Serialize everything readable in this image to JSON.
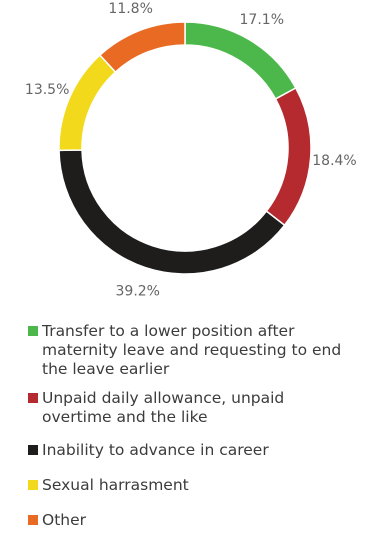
{
  "chart_data": {
    "type": "pie",
    "variant": "donut",
    "categories": [
      "Transfer to a lower position after maternity leave and requesting to end the leave earlier",
      "Unpaid daily allowance, unpaid overtime and the like",
      "Inability to advance in career",
      "Sexual harrasment",
      "Other"
    ],
    "values": [
      17.1,
      18.4,
      39.2,
      13.5,
      11.8
    ],
    "value_labels": [
      "17.1%",
      "18.4%",
      "39.2%",
      "13.5%",
      "11.8%"
    ],
    "colors": [
      "#4cb84b",
      "#b52a2e",
      "#1f1c1c",
      "#f2d91b",
      "#e96a22"
    ],
    "start_angle_deg": 0,
    "direction": "clockwise",
    "legend_placement": "bottom"
  },
  "legend": [
    {
      "label": "Transfer to a lower position after maternity leave and requesting to end the leave earlier",
      "color": "#4cb84b"
    },
    {
      "label": "Unpaid daily allowance, unpaid overtime and the like",
      "color": "#b52a2e"
    },
    {
      "label": "Inability to advance in career",
      "color": "#1f1c1c"
    },
    {
      "label": "Sexual harrasment",
      "color": "#f2d91b"
    },
    {
      "label": "Other",
      "color": "#e96a22"
    }
  ]
}
